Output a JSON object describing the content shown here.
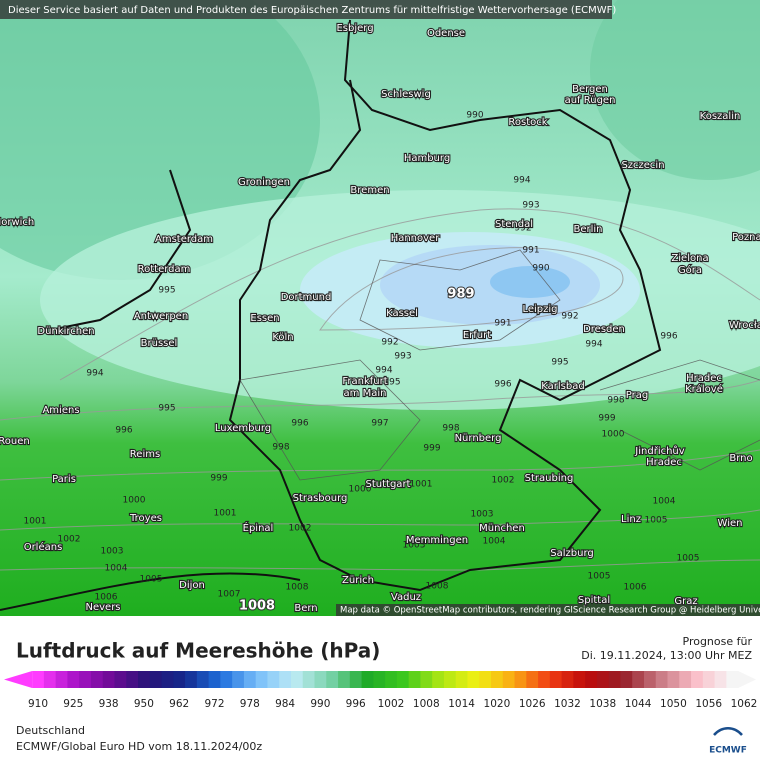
{
  "header": {
    "notice": "Dieser Service basiert auf Daten und Produkten des Europäischen Zentrums für mittelfristige Wettervorhersage (ECMWF)"
  },
  "map": {
    "cities": [
      "Esbjerg",
      "Odense",
      "Schleswig",
      "Bergen",
      "auf Rügen",
      "Rostock",
      "Koszalin",
      "Hamburg",
      "Szczecin",
      "Groningen",
      "Bremen",
      "Stendal",
      "Berlin",
      "Norwich",
      "Amsterdam",
      "Hannover",
      "Poznań",
      "Zielona",
      "Góra",
      "Rotterdam",
      "Dortmund",
      "Antwerpen",
      "Essen",
      "Kassel",
      "Leipzig",
      "Dresden",
      "Dünkirchen",
      "Brüssel",
      "Köln",
      "Erfurt",
      "Wrocław",
      "Frankfurt",
      "am Main",
      "Karlsbad",
      "Hradec",
      "Králové",
      "Amiens",
      "Prag",
      "Luxemburg",
      "Nürnberg",
      "Rouen",
      "Reims",
      "Jindřichův",
      "Hradec",
      "Brno",
      "Paris",
      "Stuttgart",
      "Straubing",
      "Strasbourg",
      "Troyes",
      "Linz",
      "Wien",
      "Épinal",
      "München",
      "Memmingen",
      "Orléans",
      "Salzburg",
      "Dijon",
      "Zürich",
      "Vaduz",
      "Nevers",
      "Bern",
      "Spittal",
      "Graz"
    ],
    "isobar_labels": [
      990,
      994,
      993,
      992,
      991,
      990,
      989,
      991,
      992,
      992,
      993,
      994,
      994,
      995,
      995,
      996,
      996,
      995,
      994,
      995,
      996,
      996,
      997,
      998,
      998,
      998,
      999,
      999,
      1000,
      999,
      1000,
      1000,
      1001,
      1002,
      1001,
      1001,
      1002,
      1003,
      1002,
      1003,
      1004,
      1004,
      1005,
      1005,
      1004,
      1003,
      1005,
      1006,
      1005,
      1006,
      1007,
      1008,
      1008,
      1008
    ],
    "attribution": "Map data © OpenStreetMap contributors, rendering GIScience Research Group @ Heidelberg University"
  },
  "legend": {
    "title": "Luftdruck auf Meereshöhe (hPa)",
    "forecast_label": "Prognose für",
    "forecast_time": "Di. 19.11.2024, 13:00 Uhr MEZ",
    "ticks": [
      910,
      925,
      938,
      950,
      962,
      972,
      978,
      984,
      990,
      996,
      1002,
      1008,
      1014,
      1020,
      1026,
      1032,
      1038,
      1044,
      1050,
      1056,
      1062
    ]
  },
  "footer": {
    "region": "Deutschland",
    "model": "ECMWF/Global Euro HD vom  18.11.2024/00z",
    "logo": "ECMWF"
  }
}
